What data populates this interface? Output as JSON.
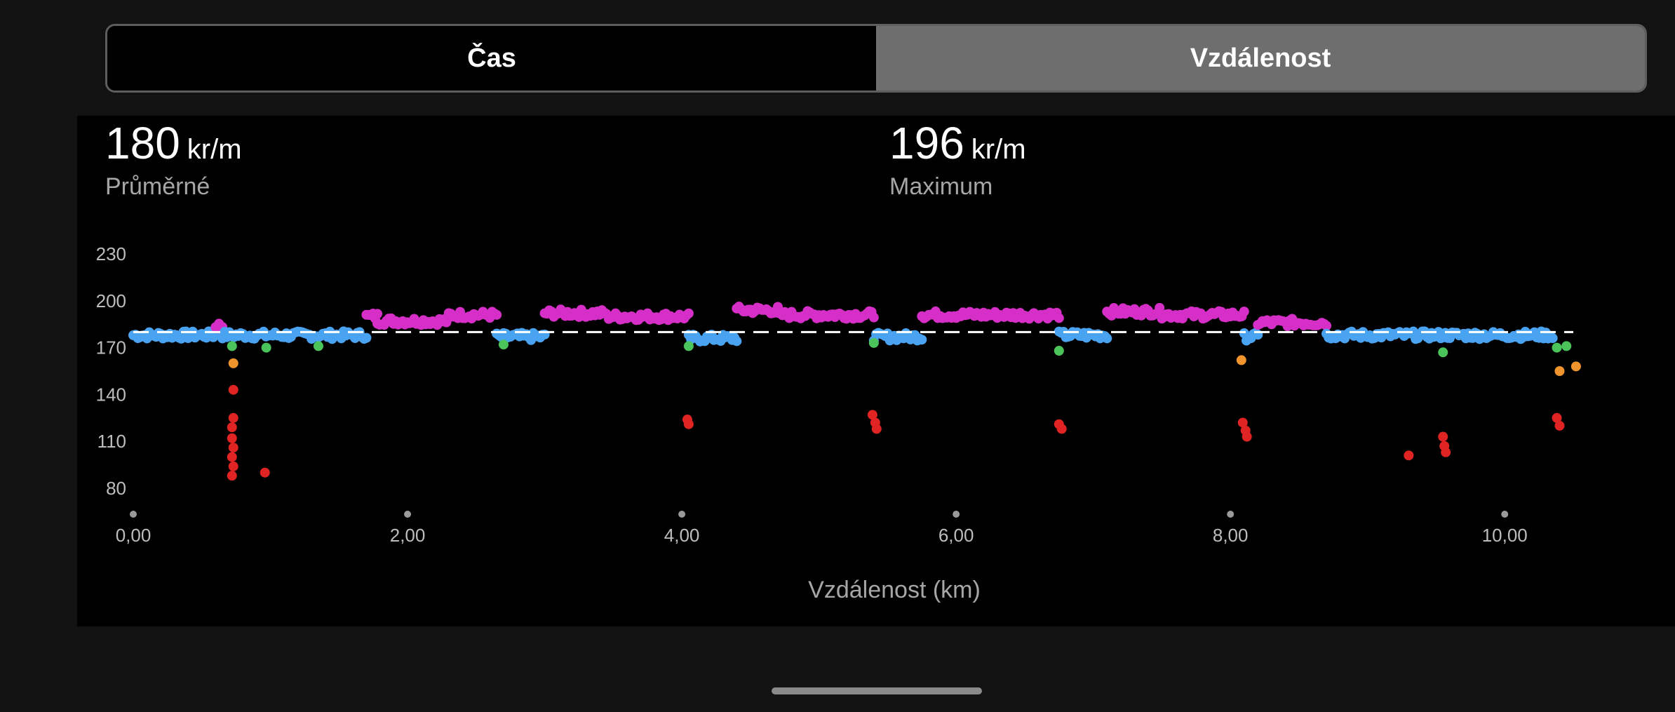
{
  "tabs": [
    {
      "label": "Čas",
      "active": false
    },
    {
      "label": "Vzdálenost",
      "active": true
    }
  ],
  "stats": {
    "average": {
      "value": "180",
      "unit": "kr/m",
      "label": "Průměrné"
    },
    "maximum": {
      "value": "196",
      "unit": "kr/m",
      "label": "Maximum"
    }
  },
  "colors": {
    "zone_magenta": "#d62fc8",
    "zone_blue": "#4aa3f0",
    "zone_green": "#4cc45c",
    "zone_orange": "#f0952e",
    "zone_red": "#e02323",
    "average_line": "#ffffff"
  },
  "chart_data": {
    "type": "scatter",
    "xlabel": "Vzdálenost (km)",
    "ylabel": "",
    "xlim": [
      0,
      10.5
    ],
    "ylim": [
      65,
      235
    ],
    "x_ticks": [
      0,
      2,
      4,
      6,
      8,
      10
    ],
    "x_tick_labels": [
      "0,00",
      "2,00",
      "4,00",
      "6,00",
      "8,00",
      "10,00"
    ],
    "y_ticks": [
      80,
      110,
      140,
      170,
      200,
      230
    ],
    "y_tick_labels": [
      "80",
      "110",
      "140",
      "170",
      "200",
      "230"
    ],
    "average_line": 180,
    "grid": false,
    "legend": "none",
    "segments": [
      {
        "x": [
          0.0,
          0.6
        ],
        "y": 178,
        "zone": "blue"
      },
      {
        "x": [
          0.6,
          0.65
        ],
        "y": 184,
        "zone": "magenta"
      },
      {
        "x": [
          0.65,
          1.7
        ],
        "y": 178,
        "zone": "blue"
      },
      {
        "x": [
          1.7,
          1.78
        ],
        "y": 190,
        "zone": "magenta"
      },
      {
        "x": [
          1.78,
          2.3
        ],
        "y": 187,
        "zone": "magenta"
      },
      {
        "x": [
          2.3,
          2.65
        ],
        "y": 191,
        "zone": "magenta"
      },
      {
        "x": [
          2.65,
          3.0
        ],
        "y": 177,
        "zone": "blue"
      },
      {
        "x": [
          3.0,
          3.45
        ],
        "y": 192,
        "zone": "magenta"
      },
      {
        "x": [
          3.45,
          4.05
        ],
        "y": 190,
        "zone": "magenta"
      },
      {
        "x": [
          4.05,
          4.4
        ],
        "y": 176,
        "zone": "blue"
      },
      {
        "x": [
          4.4,
          4.7
        ],
        "y": 194,
        "zone": "magenta"
      },
      {
        "x": [
          4.7,
          5.4
        ],
        "y": 191,
        "zone": "magenta"
      },
      {
        "x": [
          5.4,
          5.75
        ],
        "y": 177,
        "zone": "blue"
      },
      {
        "x": [
          5.75,
          6.75
        ],
        "y": 191,
        "zone": "magenta"
      },
      {
        "x": [
          6.75,
          7.1
        ],
        "y": 178,
        "zone": "blue"
      },
      {
        "x": [
          7.1,
          7.5
        ],
        "y": 193,
        "zone": "magenta"
      },
      {
        "x": [
          7.5,
          8.1
        ],
        "y": 191,
        "zone": "magenta"
      },
      {
        "x": [
          8.1,
          8.2
        ],
        "y": 177,
        "zone": "blue"
      },
      {
        "x": [
          8.2,
          8.7
        ],
        "y": 186,
        "zone": "magenta"
      },
      {
        "x": [
          8.7,
          10.35
        ],
        "y": 178,
        "zone": "blue"
      }
    ],
    "points": [
      {
        "x": 0.72,
        "y": 171,
        "zone": "green"
      },
      {
        "x": 0.97,
        "y": 170,
        "zone": "green"
      },
      {
        "x": 1.35,
        "y": 171,
        "zone": "green"
      },
      {
        "x": 2.7,
        "y": 172,
        "zone": "green"
      },
      {
        "x": 4.05,
        "y": 171,
        "zone": "green"
      },
      {
        "x": 5.4,
        "y": 173,
        "zone": "green"
      },
      {
        "x": 6.75,
        "y": 168,
        "zone": "green"
      },
      {
        "x": 9.55,
        "y": 167,
        "zone": "green"
      },
      {
        "x": 10.38,
        "y": 170,
        "zone": "green"
      },
      {
        "x": 10.45,
        "y": 171,
        "zone": "green"
      },
      {
        "x": 0.73,
        "y": 160,
        "zone": "orange"
      },
      {
        "x": 8.08,
        "y": 162,
        "zone": "orange"
      },
      {
        "x": 10.4,
        "y": 155,
        "zone": "orange"
      },
      {
        "x": 10.52,
        "y": 158,
        "zone": "orange"
      },
      {
        "x": 0.73,
        "y": 143,
        "zone": "red"
      },
      {
        "x": 0.73,
        "y": 125,
        "zone": "red"
      },
      {
        "x": 0.72,
        "y": 119,
        "zone": "red"
      },
      {
        "x": 0.72,
        "y": 112,
        "zone": "red"
      },
      {
        "x": 0.73,
        "y": 106,
        "zone": "red"
      },
      {
        "x": 0.72,
        "y": 100,
        "zone": "red"
      },
      {
        "x": 0.73,
        "y": 94,
        "zone": "red"
      },
      {
        "x": 0.72,
        "y": 88,
        "zone": "red"
      },
      {
        "x": 0.96,
        "y": 90,
        "zone": "red"
      },
      {
        "x": 4.04,
        "y": 124,
        "zone": "red"
      },
      {
        "x": 4.05,
        "y": 121,
        "zone": "red"
      },
      {
        "x": 5.39,
        "y": 127,
        "zone": "red"
      },
      {
        "x": 5.41,
        "y": 122,
        "zone": "red"
      },
      {
        "x": 5.42,
        "y": 118,
        "zone": "red"
      },
      {
        "x": 6.75,
        "y": 121,
        "zone": "red"
      },
      {
        "x": 6.77,
        "y": 118,
        "zone": "red"
      },
      {
        "x": 8.09,
        "y": 122,
        "zone": "red"
      },
      {
        "x": 8.11,
        "y": 117,
        "zone": "red"
      },
      {
        "x": 8.12,
        "y": 113,
        "zone": "red"
      },
      {
        "x": 9.3,
        "y": 101,
        "zone": "red"
      },
      {
        "x": 9.55,
        "y": 113,
        "zone": "red"
      },
      {
        "x": 9.56,
        "y": 107,
        "zone": "red"
      },
      {
        "x": 9.57,
        "y": 103,
        "zone": "red"
      },
      {
        "x": 10.38,
        "y": 125,
        "zone": "red"
      },
      {
        "x": 10.4,
        "y": 120,
        "zone": "red"
      }
    ]
  }
}
